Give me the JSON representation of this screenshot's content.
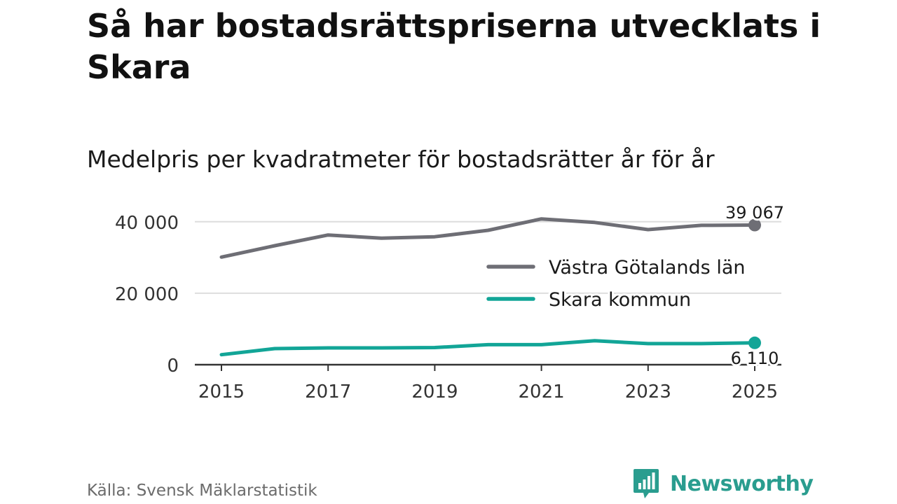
{
  "header": {
    "title": "Så har bostadsrättspriserna utvecklats i Skara",
    "subtitle": "Medelpris per kvadratmeter för bostadsrätter år för år"
  },
  "footer": {
    "source": "Källa: Svensk Mäklarstatistik",
    "brand": "Newsworthy"
  },
  "colors": {
    "vastra_gotaland": "#6e6e75",
    "skara": "#12a597",
    "grid": "#dddddd",
    "axis": "#333333",
    "brand": "#2a9d8f"
  },
  "chart_data": {
    "type": "line",
    "title": "Medelpris per kvadratmeter för bostadsrätter år för år",
    "x": [
      2015,
      2016,
      2017,
      2018,
      2019,
      2020,
      2021,
      2022,
      2023,
      2024,
      2025
    ],
    "xticks": [
      "2015",
      "2017",
      "2019",
      "2021",
      "2023",
      "2025"
    ],
    "yticks": [
      0,
      20000,
      40000
    ],
    "ytick_labels": [
      "0",
      "20 000",
      "40 000"
    ],
    "ylim": [
      0,
      42500
    ],
    "grid": true,
    "legend_position": "center-right",
    "series": [
      {
        "name": "Västra Götalands län",
        "color": "#6e6e75",
        "values": [
          30100,
          33300,
          36300,
          35400,
          35800,
          37600,
          40800,
          39800,
          37800,
          39000,
          39067
        ],
        "end_label": "39 067"
      },
      {
        "name": "Skara kommun",
        "color": "#12a597",
        "values": [
          2800,
          4500,
          4700,
          4700,
          4800,
          5600,
          5600,
          6700,
          5900,
          5900,
          6110
        ],
        "end_label": "6 110"
      }
    ]
  }
}
